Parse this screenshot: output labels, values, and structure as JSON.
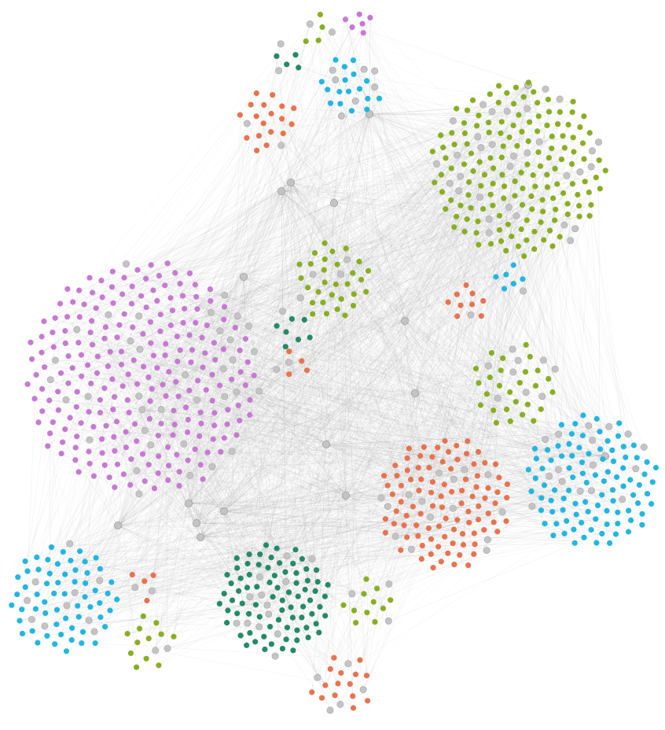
{
  "diagram": {
    "type": "network-graph",
    "background": "#ffffff",
    "edge_color": "#9a9a9a",
    "node_color_gray": "#c4c4c4",
    "palette": {
      "purple": "#c67ad2",
      "green": "#8aae22",
      "blue": "#22b7e0",
      "orange": "#e8734f",
      "teal": "#248a6a",
      "gray": "#c4c4c4"
    }
  }
}
